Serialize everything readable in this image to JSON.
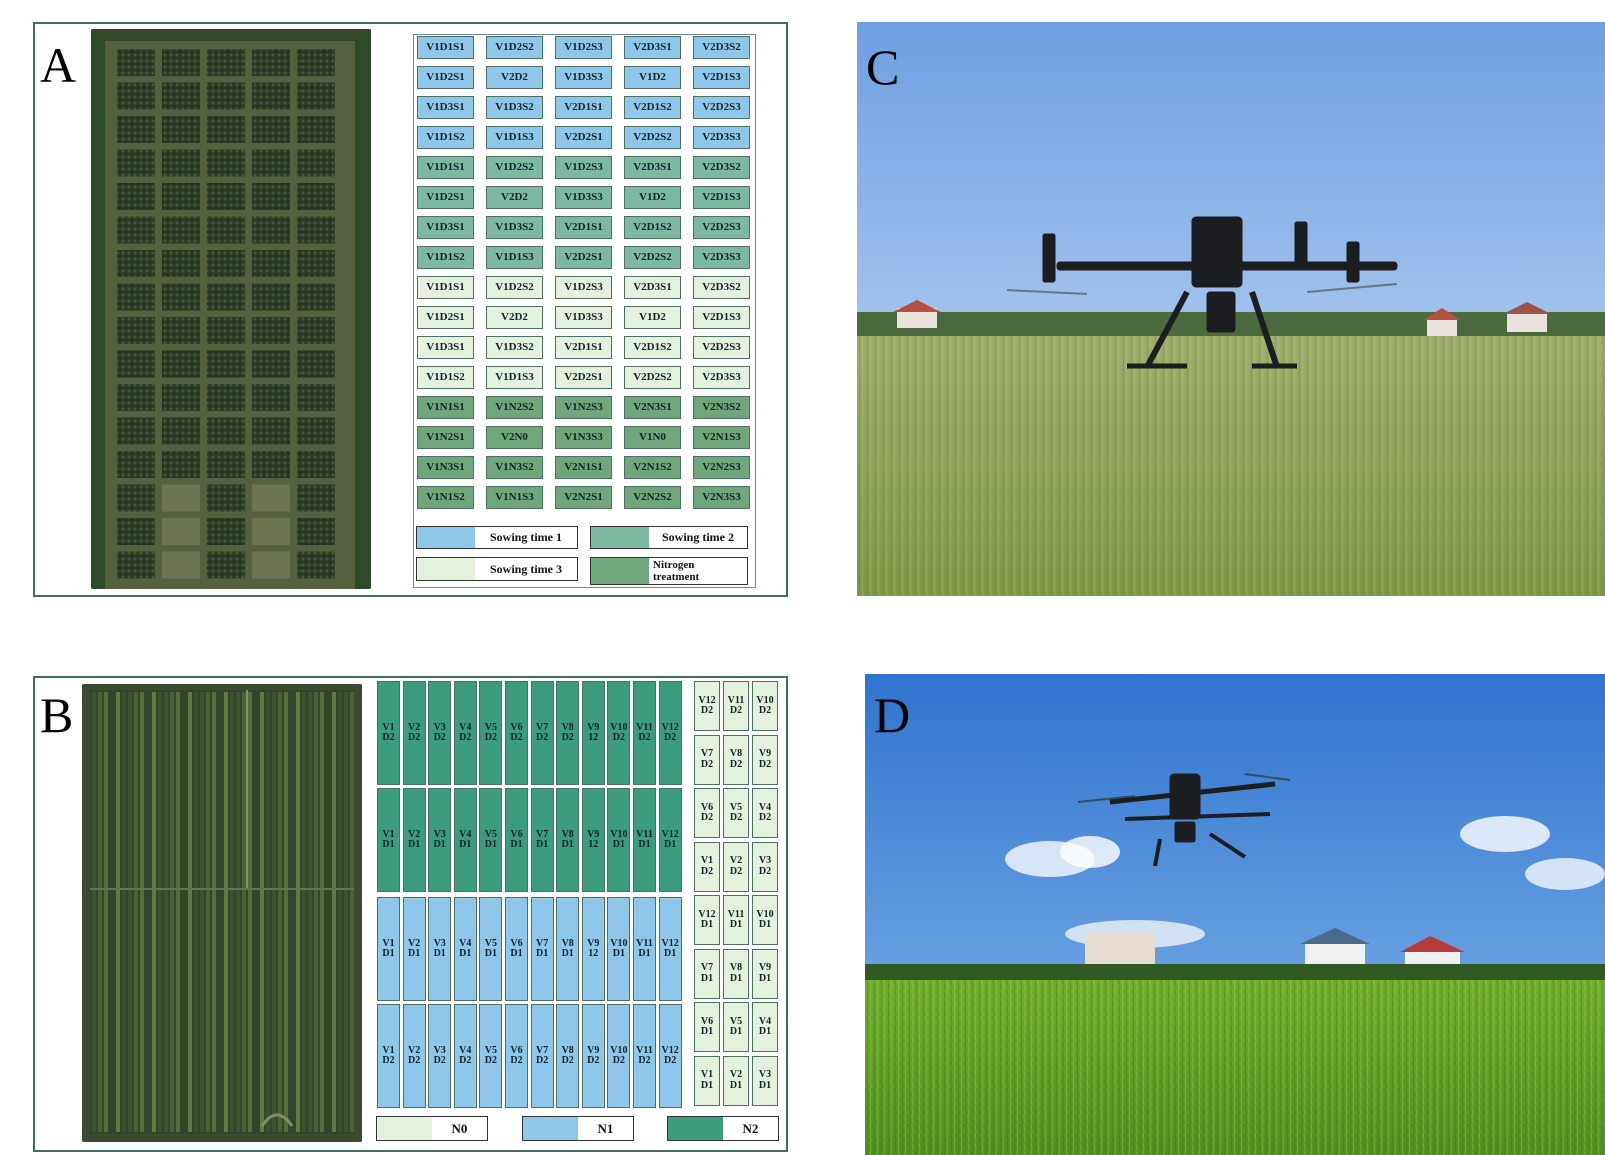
{
  "panels": {
    "a": "A",
    "b": "B",
    "c": "C",
    "d": "D"
  },
  "colors": {
    "sowing1": "#8ec7ea",
    "sowing2": "#7db8a0",
    "sowing3": "#e4f1dc",
    "nitrogen": "#6fa77a",
    "n0": "#e4f1dc",
    "n1": "#8ec7ea",
    "n2": "#3c9c7e"
  },
  "panelA": {
    "rows": [
      {
        "group": "sowing1",
        "cells": [
          "V1D1S1",
          "V1D2S2",
          "V1D2S3",
          "V2D3S1",
          "V2D3S2"
        ]
      },
      {
        "group": "sowing1",
        "cells": [
          "V1D2S1",
          "V2D2",
          "V1D3S3",
          "V1D2",
          "V2D1S3"
        ]
      },
      {
        "group": "sowing1",
        "cells": [
          "V1D3S1",
          "V1D3S2",
          "V2D1S1",
          "V2D1S2",
          "V2D2S3"
        ]
      },
      {
        "group": "sowing1",
        "cells": [
          "V1D1S2",
          "V1D1S3",
          "V2D2S1",
          "V2D2S2",
          "V2D3S3"
        ]
      },
      {
        "group": "sowing2",
        "cells": [
          "V1D1S1",
          "V1D2S2",
          "V1D2S3",
          "V2D3S1",
          "V2D3S2"
        ]
      },
      {
        "group": "sowing2",
        "cells": [
          "V1D2S1",
          "V2D2",
          "V1D3S3",
          "V1D2",
          "V2D1S3"
        ]
      },
      {
        "group": "sowing2",
        "cells": [
          "V1D3S1",
          "V1D3S2",
          "V2D1S1",
          "V2D1S2",
          "V2D2S3"
        ]
      },
      {
        "group": "sowing2",
        "cells": [
          "V1D1S2",
          "V1D1S3",
          "V2D2S1",
          "V2D2S2",
          "V2D3S3"
        ]
      },
      {
        "group": "sowing3",
        "cells": [
          "V1D1S1",
          "V1D2S2",
          "V1D2S3",
          "V2D3S1",
          "V2D3S2"
        ]
      },
      {
        "group": "sowing3",
        "cells": [
          "V1D2S1",
          "V2D2",
          "V1D3S3",
          "V1D2",
          "V2D1S3"
        ]
      },
      {
        "group": "sowing3",
        "cells": [
          "V1D3S1",
          "V1D3S2",
          "V2D1S1",
          "V2D1S2",
          "V2D2S3"
        ]
      },
      {
        "group": "sowing3",
        "cells": [
          "V1D1S2",
          "V1D1S3",
          "V2D2S1",
          "V2D2S2",
          "V2D3S3"
        ]
      },
      {
        "group": "nitrogen",
        "cells": [
          "V1N1S1",
          "V1N2S2",
          "V1N2S3",
          "V2N3S1",
          "V2N3S2"
        ]
      },
      {
        "group": "nitrogen",
        "cells": [
          "V1N2S1",
          "V2N0",
          "V1N3S3",
          "V1N0",
          "V2N1S3"
        ]
      },
      {
        "group": "nitrogen",
        "cells": [
          "V1N3S1",
          "V1N3S2",
          "V2N1S1",
          "V2N1S2",
          "V2N2S3"
        ]
      },
      {
        "group": "nitrogen",
        "cells": [
          "V1N1S2",
          "V1N1S3",
          "V2N2S1",
          "V2N2S2",
          "V2N3S3"
        ]
      }
    ],
    "legend": {
      "sowing1": "Sowing time 1",
      "sowing2": "Sowing time 2",
      "sowing3": "Sowing time 3",
      "nitrogen": "Nitrogen treatment"
    }
  },
  "panelB": {
    "blocks": [
      {
        "group": "n2",
        "cells": [
          "V1 D2",
          "V2 D2",
          "V3 D2",
          "V4 D2",
          "V5 D2",
          "V6 D2",
          "V7 D2",
          "V8 D2",
          "V9 12",
          "V10 D2",
          "V11 D2",
          "V12 D2"
        ]
      },
      {
        "group": "n2",
        "cells": [
          "V1 D1",
          "V2 D1",
          "V3 D1",
          "V4 D1",
          "V5 D1",
          "V6 D1",
          "V7 D1",
          "V8 D1",
          "V9 12",
          "V10 D1",
          "V11 D1",
          "V12 D1"
        ]
      },
      {
        "group": "n1",
        "cells": [
          "V1 D1",
          "V2 D1",
          "V3 D1",
          "V4 D1",
          "V5 D1",
          "V6 D1",
          "V7 D1",
          "V8 D1",
          "V9 12",
          "V10 D1",
          "V11 D1",
          "V12 D1"
        ]
      },
      {
        "group": "n1",
        "cells": [
          "V1 D2",
          "V2 D2",
          "V3 D2",
          "V4 D2",
          "V5 D2",
          "V6 D2",
          "V7 D2",
          "V8 D2",
          "V9 D2",
          "V10 D2",
          "V11 D2",
          "V12 D2"
        ]
      }
    ],
    "side": [
      [
        "V12 D2",
        "V11 D2",
        "V10 D2"
      ],
      [
        "V7 D2",
        "V8 D2",
        "V9 D2"
      ],
      [
        "V6 D2",
        "V5 D2",
        "V4 D2"
      ],
      [
        "V1 D2",
        "V2 D2",
        "V3 D2"
      ],
      [
        "V12 D1",
        "V11 D1",
        "V10 D1"
      ],
      [
        "V7 D1",
        "V8 D1",
        "V9 D1"
      ],
      [
        "V6 D1",
        "V5 D1",
        "V4 D1"
      ],
      [
        "V1 D1",
        "V2 D1",
        "V3 D1"
      ]
    ],
    "legend": {
      "n0": "N0",
      "n1": "N1",
      "n2": "N2"
    }
  }
}
